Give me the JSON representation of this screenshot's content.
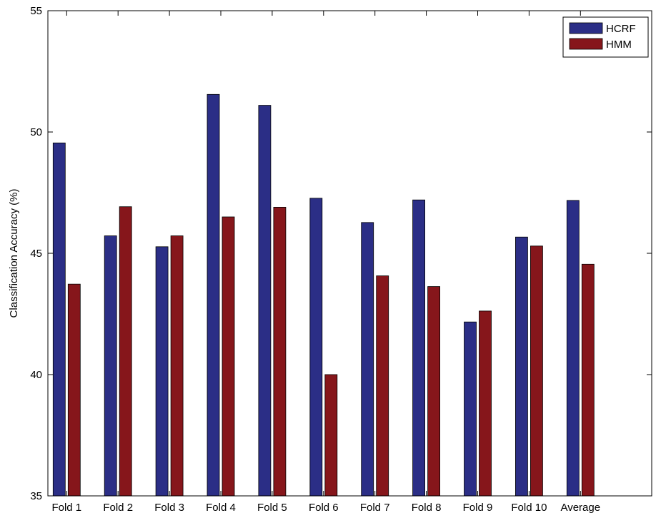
{
  "chart_data": {
    "type": "bar",
    "title": "",
    "xlabel": "",
    "ylabel": "Classification Accuracy (%)",
    "ylim": [
      35,
      55
    ],
    "yticks": [
      35,
      40,
      45,
      50,
      55
    ],
    "grid": false,
    "legend_position": "top-right",
    "categories": [
      "Fold 1",
      "Fold 2",
      "Fold 3",
      "Fold 4",
      "Fold 5",
      "Fold 6",
      "Fold 7",
      "Fold 8",
      "Fold 9",
      "Fold 10",
      "Average"
    ],
    "series": [
      {
        "name": "HCRF",
        "color": "#2b2e86",
        "values": [
          49.55,
          45.72,
          45.27,
          51.55,
          51.1,
          47.27,
          46.27,
          47.2,
          42.17,
          45.67,
          47.18
        ]
      },
      {
        "name": "HMM",
        "color": "#86161b",
        "values": [
          43.73,
          46.92,
          45.72,
          46.5,
          46.9,
          40.0,
          44.07,
          43.63,
          42.62,
          45.3,
          44.55
        ]
      }
    ]
  }
}
